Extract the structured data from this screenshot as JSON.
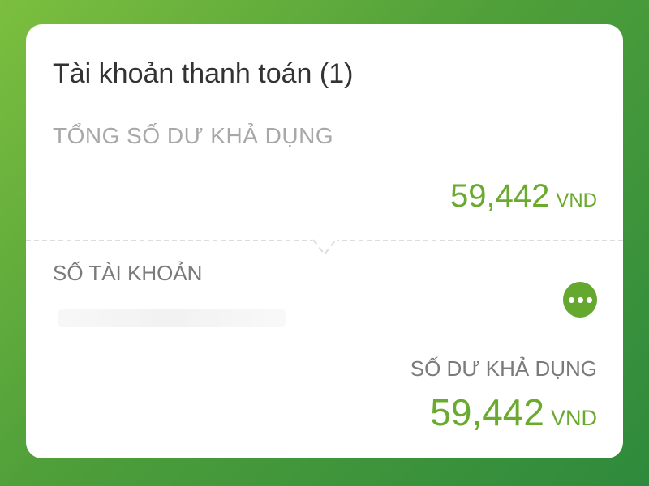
{
  "card": {
    "title": "Tài khoản thanh toán (1)",
    "total_label": "TỔNG SỐ DƯ KHẢ DỤNG",
    "total_amount": "59,442",
    "total_currency": "VND",
    "account_label": "SỐ TÀI KHOẢN",
    "account_number": "",
    "more_icon": "more-horizontal-icon",
    "available_label": "SỐ DƯ KHẢ DỤNG",
    "available_amount": "59,442",
    "available_currency": "VND"
  },
  "colors": {
    "accent": "#6aaa2e",
    "background": "#4f9f3a"
  }
}
